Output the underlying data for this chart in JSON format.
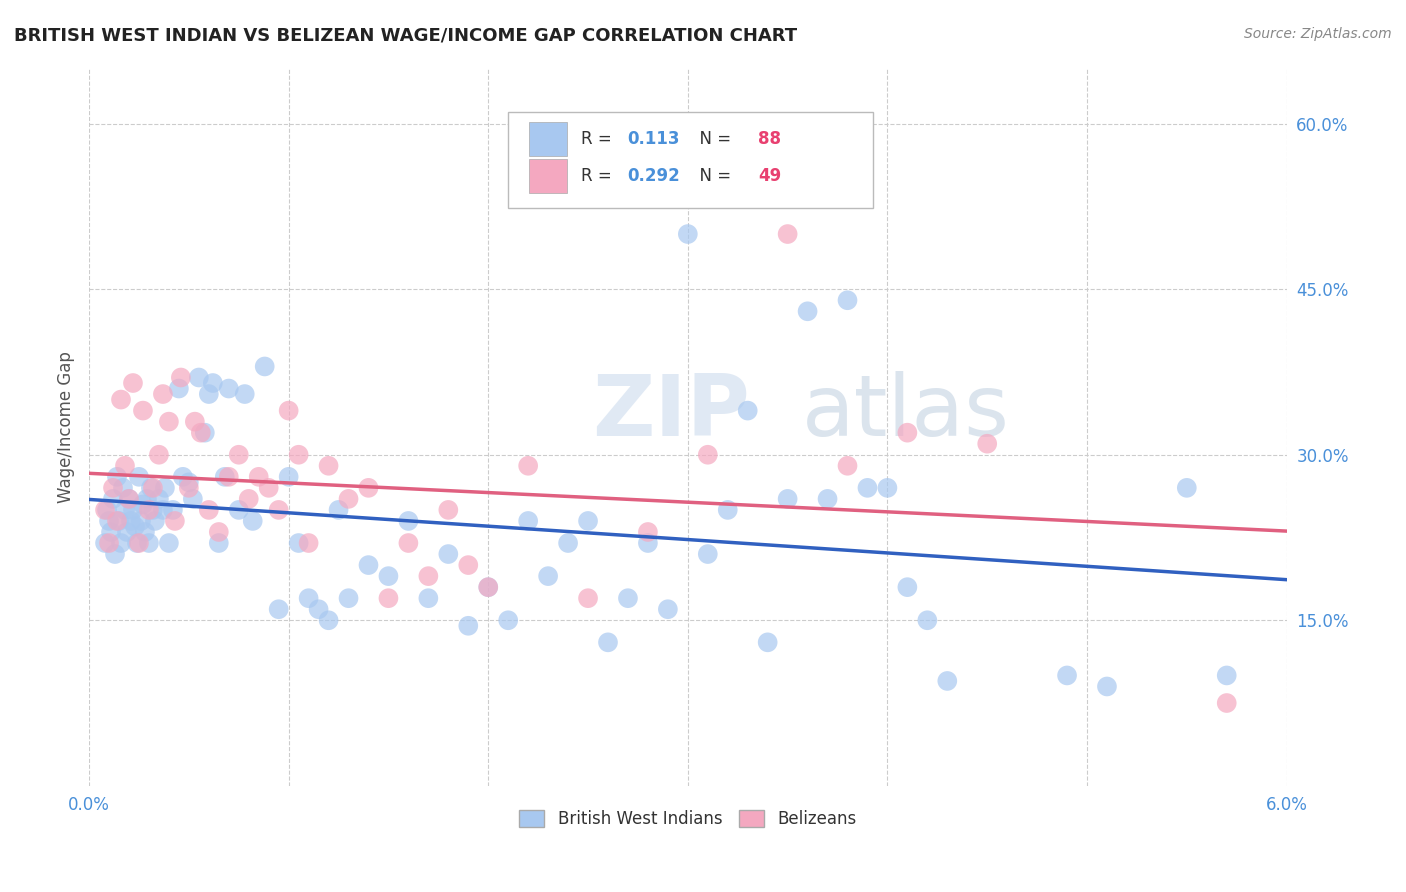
{
  "title": "BRITISH WEST INDIAN VS BELIZEAN WAGE/INCOME GAP CORRELATION CHART",
  "source_text": "Source: ZipAtlas.com",
  "ylabel": "Wage/Income Gap",
  "xlim": [
    0.0,
    6.0
  ],
  "ylim": [
    0.0,
    65.0
  ],
  "xticks": [
    0.0,
    1.0,
    2.0,
    3.0,
    4.0,
    5.0,
    6.0
  ],
  "yticks": [
    15.0,
    30.0,
    45.0,
    60.0
  ],
  "yticklabels": [
    "15.0%",
    "30.0%",
    "45.0%",
    "60.0%"
  ],
  "background_color": "#ffffff",
  "grid_color": "#cccccc",
  "series1_color": "#a8c8f0",
  "series2_color": "#f4a8c0",
  "series1_label": "British West Indians",
  "series2_label": "Belizeans",
  "series1_R": "0.113",
  "series1_N": "88",
  "series2_R": "0.292",
  "series2_N": "49",
  "legend_R_color": "#4a90d9",
  "legend_N_color": "#e84070",
  "trend1_color": "#3060c0",
  "trend2_color": "#e06080",
  "watermark_zip": "ZIP",
  "watermark_atlas": "atlas",
  "series1_x": [
    0.08,
    0.09,
    0.1,
    0.11,
    0.12,
    0.13,
    0.14,
    0.15,
    0.16,
    0.17,
    0.18,
    0.19,
    0.2,
    0.21,
    0.22,
    0.23,
    0.24,
    0.25,
    0.26,
    0.27,
    0.28,
    0.29,
    0.3,
    0.31,
    0.32,
    0.33,
    0.35,
    0.37,
    0.38,
    0.4,
    0.42,
    0.45,
    0.47,
    0.5,
    0.52,
    0.55,
    0.58,
    0.6,
    0.62,
    0.65,
    0.68,
    0.7,
    0.75,
    0.78,
    0.82,
    0.88,
    0.95,
    1.0,
    1.05,
    1.1,
    1.15,
    1.2,
    1.25,
    1.3,
    1.4,
    1.5,
    1.6,
    1.7,
    1.8,
    1.9,
    2.0,
    2.1,
    2.2,
    2.3,
    2.4,
    2.5,
    2.6,
    2.7,
    2.8,
    2.9,
    3.0,
    3.1,
    3.2,
    3.3,
    3.4,
    3.5,
    3.6,
    3.7,
    3.8,
    3.9,
    4.0,
    4.1,
    4.2,
    4.3,
    4.9,
    5.1,
    5.5,
    5.7
  ],
  "series1_y": [
    22.0,
    25.0,
    24.0,
    23.0,
    26.0,
    21.0,
    28.0,
    24.0,
    22.0,
    27.0,
    25.0,
    23.0,
    26.0,
    24.0,
    25.0,
    23.5,
    22.0,
    28.0,
    24.0,
    25.5,
    23.0,
    26.0,
    22.0,
    27.0,
    25.0,
    24.0,
    26.0,
    25.0,
    27.0,
    22.0,
    25.0,
    36.0,
    28.0,
    27.5,
    26.0,
    37.0,
    32.0,
    35.5,
    36.5,
    22.0,
    28.0,
    36.0,
    25.0,
    35.5,
    24.0,
    38.0,
    16.0,
    28.0,
    22.0,
    17.0,
    16.0,
    15.0,
    25.0,
    17.0,
    20.0,
    19.0,
    24.0,
    17.0,
    21.0,
    14.5,
    18.0,
    15.0,
    24.0,
    19.0,
    22.0,
    24.0,
    13.0,
    17.0,
    22.0,
    16.0,
    50.0,
    21.0,
    25.0,
    34.0,
    13.0,
    26.0,
    43.0,
    26.0,
    44.0,
    27.0,
    27.0,
    18.0,
    15.0,
    9.5,
    10.0,
    9.0,
    27.0,
    10.0
  ],
  "series2_x": [
    0.08,
    0.1,
    0.12,
    0.14,
    0.16,
    0.18,
    0.2,
    0.22,
    0.25,
    0.27,
    0.3,
    0.32,
    0.35,
    0.37,
    0.4,
    0.43,
    0.46,
    0.5,
    0.53,
    0.56,
    0.6,
    0.65,
    0.7,
    0.75,
    0.8,
    0.85,
    0.9,
    0.95,
    1.0,
    1.05,
    1.1,
    1.2,
    1.3,
    1.4,
    1.5,
    1.6,
    1.7,
    1.8,
    1.9,
    2.0,
    2.2,
    2.5,
    2.8,
    3.1,
    3.5,
    3.8,
    4.1,
    4.5,
    5.7
  ],
  "series2_y": [
    25.0,
    22.0,
    27.0,
    24.0,
    35.0,
    29.0,
    26.0,
    36.5,
    22.0,
    34.0,
    25.0,
    27.0,
    30.0,
    35.5,
    33.0,
    24.0,
    37.0,
    27.0,
    33.0,
    32.0,
    25.0,
    23.0,
    28.0,
    30.0,
    26.0,
    28.0,
    27.0,
    25.0,
    34.0,
    30.0,
    22.0,
    29.0,
    26.0,
    27.0,
    17.0,
    22.0,
    19.0,
    25.0,
    20.0,
    18.0,
    29.0,
    17.0,
    23.0,
    30.0,
    50.0,
    29.0,
    32.0,
    31.0,
    7.5
  ]
}
